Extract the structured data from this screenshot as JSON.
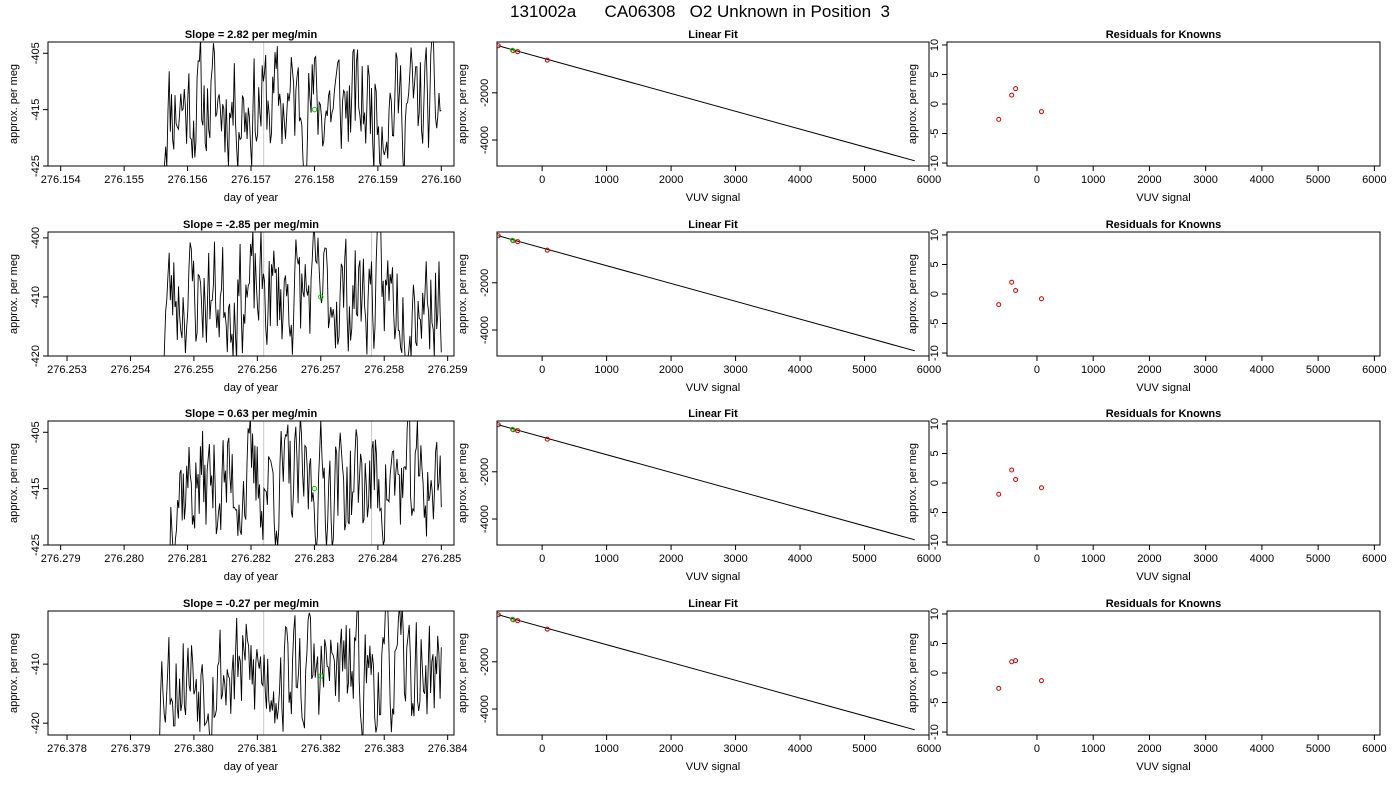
{
  "main_title": "131002a      CA06308   O2 Unknown in Position  3",
  "colors": {
    "trace": "#000000",
    "unknown_point": "#00cc00",
    "known_point": "#cc0000",
    "grid_line": "#c8c8c8"
  },
  "chart_data": [
    {
      "type": "line",
      "panel": "time-series",
      "row": 1,
      "title": "Slope =  2.82  per meg/min",
      "xlabel": "day of year",
      "ylabel": "approx. per meg",
      "xlim": [
        276.1538,
        276.1602
      ],
      "ylim": [
        -425,
        -403
      ],
      "xticks": [
        276.154,
        276.155,
        276.156,
        276.157,
        276.158,
        276.159,
        276.16
      ],
      "xtick_labels": [
        "276.154",
        "276.155",
        "276.156",
        "276.157",
        "276.158",
        "276.159",
        "276.160"
      ],
      "yticks": [
        -405,
        -415,
        -425
      ],
      "ytick_labels": [
        "-405",
        "-415",
        "-425"
      ],
      "trace_start": 276.1556,
      "trace_end": 276.16,
      "seed": 11,
      "vlines": [
        276.1572
      ],
      "unknown_point": {
        "x": 276.158,
        "y": -415
      }
    },
    {
      "type": "scatter",
      "panel": "linear-fit",
      "row": 1,
      "title": "Linear Fit",
      "xlabel": "VUV signal",
      "ylabel": "approx. per meg",
      "xlim": [
        -700,
        6000
      ],
      "ylim": [
        -5100,
        150
      ],
      "xticks": [
        0,
        1000,
        2000,
        3000,
        4000,
        5000,
        6000
      ],
      "xtick_labels": [
        "0",
        "1000",
        "2000",
        "3000",
        "4000",
        "5000",
        "6000"
      ],
      "yticks": [
        -2000,
        -4000
      ],
      "ytick_labels": [
        "-2000",
        "-4000"
      ],
      "fit_line": {
        "x": [
          -680,
          5780
        ],
        "y": [
          -10,
          -4880
        ]
      },
      "known_points": [
        {
          "x": -680,
          "y": -10
        },
        {
          "x": -450,
          "y": -220
        },
        {
          "x": -380,
          "y": -260
        },
        {
          "x": 80,
          "y": -620
        }
      ],
      "unknown_points": [
        {
          "x": -460,
          "y": -200
        }
      ]
    },
    {
      "type": "scatter",
      "panel": "residuals",
      "row": 1,
      "title": "Residuals for Knowns",
      "xlabel": "VUV signal",
      "ylabel": "approx. per meg",
      "xlim": [
        -1600,
        6100
      ],
      "ylim": [
        -10.5,
        10.5
      ],
      "xticks": [
        0,
        1000,
        2000,
        3000,
        4000,
        5000,
        6000
      ],
      "xtick_labels": [
        "0",
        "1000",
        "2000",
        "3000",
        "4000",
        "5000",
        "6000"
      ],
      "yticks": [
        10,
        5,
        0,
        -5,
        -10
      ],
      "ytick_labels": [
        "10",
        "5",
        "0",
        "-5",
        "-10"
      ],
      "points": [
        {
          "x": -680,
          "y": -2.6
        },
        {
          "x": -450,
          "y": 1.5
        },
        {
          "x": -380,
          "y": 2.6
        },
        {
          "x": 80,
          "y": -1.3
        }
      ]
    },
    {
      "type": "line",
      "panel": "time-series",
      "row": 2,
      "title": "Slope =  -2.85  per meg/min",
      "xlabel": "day of year",
      "ylabel": "approx. per meg",
      "xlim": [
        276.2527,
        276.2591
      ],
      "ylim": [
        -420,
        -399
      ],
      "xticks": [
        276.253,
        276.254,
        276.255,
        276.256,
        276.257,
        276.258,
        276.259
      ],
      "xtick_labels": [
        "276.253",
        "276.254",
        "276.255",
        "276.256",
        "276.257",
        "276.258",
        "276.259"
      ],
      "yticks": [
        -400,
        -410,
        -420
      ],
      "ytick_labels": [
        "-400",
        "-410",
        "-420"
      ],
      "trace_start": 276.2545,
      "trace_end": 276.2589,
      "seed": 23,
      "vlines": [
        276.2561,
        276.2578
      ],
      "unknown_point": {
        "x": 276.257,
        "y": -410
      }
    },
    {
      "type": "scatter",
      "panel": "linear-fit",
      "row": 2,
      "title": "Linear Fit",
      "xlabel": "VUV signal",
      "ylabel": "approx. per meg",
      "xlim": [
        -700,
        6000
      ],
      "ylim": [
        -5100,
        150
      ],
      "xticks": [
        0,
        1000,
        2000,
        3000,
        4000,
        5000,
        6000
      ],
      "xtick_labels": [
        "0",
        "1000",
        "2000",
        "3000",
        "4000",
        "5000",
        "6000"
      ],
      "yticks": [
        -2000,
        -4000
      ],
      "ytick_labels": [
        "-2000",
        "-4000"
      ],
      "fit_line": {
        "x": [
          -680,
          5780
        ],
        "y": [
          -10,
          -4880
        ]
      },
      "known_points": [
        {
          "x": -680,
          "y": -10
        },
        {
          "x": -450,
          "y": -220
        },
        {
          "x": -380,
          "y": -260
        },
        {
          "x": 80,
          "y": -620
        }
      ],
      "unknown_points": [
        {
          "x": -460,
          "y": -200
        }
      ]
    },
    {
      "type": "scatter",
      "panel": "residuals",
      "row": 2,
      "title": "Residuals for Knowns",
      "xlabel": "VUV signal",
      "ylabel": "approx. per meg",
      "xlim": [
        -1600,
        6100
      ],
      "ylim": [
        -10.5,
        10.5
      ],
      "xticks": [
        0,
        1000,
        2000,
        3000,
        4000,
        5000,
        6000
      ],
      "xtick_labels": [
        "0",
        "1000",
        "2000",
        "3000",
        "4000",
        "5000",
        "6000"
      ],
      "yticks": [
        10,
        5,
        0,
        -5,
        -10
      ],
      "ytick_labels": [
        "10",
        "5",
        "0",
        "-5",
        "-10"
      ],
      "points": [
        {
          "x": -680,
          "y": -1.8
        },
        {
          "x": -450,
          "y": 2.0
        },
        {
          "x": -380,
          "y": 0.6
        },
        {
          "x": 80,
          "y": -0.8
        }
      ]
    },
    {
      "type": "line",
      "panel": "time-series",
      "row": 3,
      "title": "Slope =  0.63  per meg/min",
      "xlabel": "day of year",
      "ylabel": "approx. per meg",
      "xlim": [
        276.2788,
        276.2852
      ],
      "ylim": [
        -425,
        -403
      ],
      "xticks": [
        276.279,
        276.28,
        276.281,
        276.282,
        276.283,
        276.284,
        276.285
      ],
      "xtick_labels": [
        "276.279",
        "276.280",
        "276.281",
        "276.282",
        "276.283",
        "276.284",
        "276.285"
      ],
      "yticks": [
        -405,
        -415,
        -425
      ],
      "ytick_labels": [
        "-405",
        "-415",
        "-425"
      ],
      "trace_start": 276.2807,
      "trace_end": 276.285,
      "seed": 37,
      "vlines": [
        276.2822,
        276.2839
      ],
      "unknown_point": {
        "x": 276.283,
        "y": -415
      }
    },
    {
      "type": "scatter",
      "panel": "linear-fit",
      "row": 3,
      "title": "Linear Fit",
      "xlabel": "VUV signal",
      "ylabel": "approx. per meg",
      "xlim": [
        -700,
        6000
      ],
      "ylim": [
        -5100,
        150
      ],
      "xticks": [
        0,
        1000,
        2000,
        3000,
        4000,
        5000,
        6000
      ],
      "xtick_labels": [
        "0",
        "1000",
        "2000",
        "3000",
        "4000",
        "5000",
        "6000"
      ],
      "yticks": [
        -2000,
        -4000
      ],
      "ytick_labels": [
        "-2000",
        "-4000"
      ],
      "fit_line": {
        "x": [
          -680,
          5780
        ],
        "y": [
          -10,
          -4880
        ]
      },
      "known_points": [
        {
          "x": -680,
          "y": -10
        },
        {
          "x": -450,
          "y": -220
        },
        {
          "x": -380,
          "y": -260
        },
        {
          "x": 80,
          "y": -620
        }
      ],
      "unknown_points": [
        {
          "x": -460,
          "y": -200
        }
      ]
    },
    {
      "type": "scatter",
      "panel": "residuals",
      "row": 3,
      "title": "Residuals for Knowns",
      "xlabel": "VUV signal",
      "ylabel": "approx. per meg",
      "xlim": [
        -1600,
        6100
      ],
      "ylim": [
        -10.5,
        10.5
      ],
      "xticks": [
        0,
        1000,
        2000,
        3000,
        4000,
        5000,
        6000
      ],
      "xtick_labels": [
        "0",
        "1000",
        "2000",
        "3000",
        "4000",
        "5000",
        "6000"
      ],
      "yticks": [
        10,
        5,
        0,
        -5,
        -10
      ],
      "ytick_labels": [
        "10",
        "5",
        "0",
        "-5",
        "-10"
      ],
      "points": [
        {
          "x": -680,
          "y": -1.9
        },
        {
          "x": -450,
          "y": 2.2
        },
        {
          "x": -380,
          "y": 0.6
        },
        {
          "x": 80,
          "y": -0.8
        }
      ]
    },
    {
      "type": "line",
      "panel": "time-series",
      "row": 4,
      "title": "Slope =  -0.27  per meg/min",
      "xlabel": "day of year",
      "ylabel": "approx. per meg",
      "xlim": [
        276.3777,
        276.3841
      ],
      "ylim": [
        -422,
        -401
      ],
      "xticks": [
        276.378,
        276.379,
        276.38,
        276.381,
        276.382,
        276.383,
        276.384
      ],
      "xtick_labels": [
        "276.378",
        "276.379",
        "276.380",
        "276.381",
        "276.382",
        "276.383",
        "276.384"
      ],
      "yticks": [
        -410,
        -420
      ],
      "ytick_labels": [
        "-410",
        "-420"
      ],
      "trace_start": 276.3794,
      "trace_end": 276.3839,
      "seed": 53,
      "vlines": [
        276.3811
      ],
      "unknown_point": {
        "x": 276.382,
        "y": -412
      }
    },
    {
      "type": "scatter",
      "panel": "linear-fit",
      "row": 4,
      "title": "Linear Fit",
      "xlabel": "VUV signal",
      "ylabel": "approx. per meg",
      "xlim": [
        -700,
        6000
      ],
      "ylim": [
        -5100,
        150
      ],
      "xticks": [
        0,
        1000,
        2000,
        3000,
        4000,
        5000,
        6000
      ],
      "xtick_labels": [
        "0",
        "1000",
        "2000",
        "3000",
        "4000",
        "5000",
        "6000"
      ],
      "yticks": [
        -2000,
        -4000
      ],
      "ytick_labels": [
        "-2000",
        "-4000"
      ],
      "fit_line": {
        "x": [
          -680,
          5780
        ],
        "y": [
          -10,
          -4880
        ]
      },
      "known_points": [
        {
          "x": -680,
          "y": -10
        },
        {
          "x": -450,
          "y": -220
        },
        {
          "x": -380,
          "y": -260
        },
        {
          "x": 80,
          "y": -620
        }
      ],
      "unknown_points": [
        {
          "x": -460,
          "y": -200
        }
      ]
    },
    {
      "type": "scatter",
      "panel": "residuals",
      "row": 4,
      "title": "Residuals for Knowns",
      "xlabel": "VUV signal",
      "ylabel": "approx. per meg",
      "xlim": [
        -1600,
        6100
      ],
      "ylim": [
        -10.5,
        10.5
      ],
      "xticks": [
        0,
        1000,
        2000,
        3000,
        4000,
        5000,
        6000
      ],
      "xtick_labels": [
        "0",
        "1000",
        "2000",
        "3000",
        "4000",
        "5000",
        "6000"
      ],
      "yticks": [
        10,
        5,
        0,
        -5,
        -10
      ],
      "ytick_labels": [
        "10",
        "5",
        "0",
        "-5",
        "-10"
      ],
      "points": [
        {
          "x": -680,
          "y": -2.6
        },
        {
          "x": -450,
          "y": 1.9
        },
        {
          "x": -380,
          "y": 2.1
        },
        {
          "x": 80,
          "y": -1.3
        }
      ]
    }
  ]
}
